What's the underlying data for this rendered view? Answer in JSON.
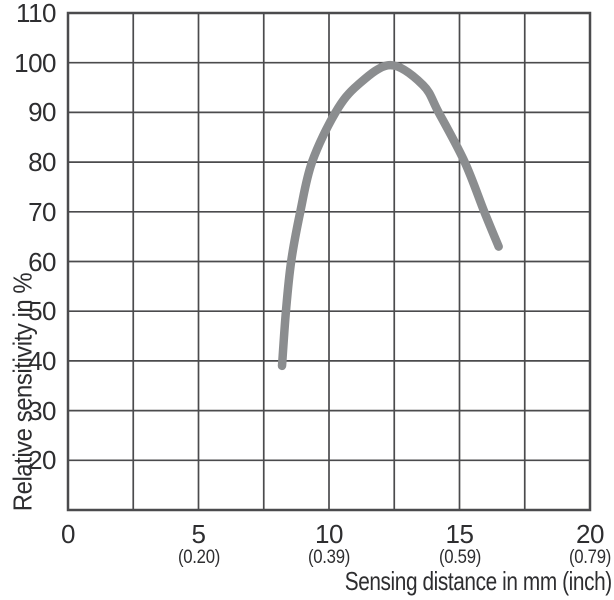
{
  "colors": {
    "background": "#ffffff",
    "grid": "#4b4b4d",
    "text": "#2e2e30",
    "curve": "#8b8d8f"
  },
  "chart_data": {
    "type": "line",
    "xlabel": "Sensing distance in mm (inch)",
    "ylabel": "Relative sensitivity in %",
    "xlim": [
      0,
      20
    ],
    "ylim": [
      10,
      110
    ],
    "x_grid_step": 2.5,
    "y_grid_step": 10,
    "grid": true,
    "legend": false,
    "x_ticks": [
      {
        "mm": 0,
        "label": "0",
        "inch": ""
      },
      {
        "mm": 5,
        "label": "5",
        "inch": "(0.20)"
      },
      {
        "mm": 10,
        "label": "10",
        "inch": "(0.39)"
      },
      {
        "mm": 15,
        "label": "15",
        "inch": "(0.59)"
      },
      {
        "mm": 20,
        "label": "20",
        "inch": "(0.79)"
      }
    ],
    "y_ticks": [
      {
        "value": 110,
        "label": "110"
      },
      {
        "value": 100,
        "label": "100"
      },
      {
        "value": 90,
        "label": "90"
      },
      {
        "value": 80,
        "label": "80"
      },
      {
        "value": 70,
        "label": "70"
      },
      {
        "value": 60,
        "label": "60"
      },
      {
        "value": 50,
        "label": "50"
      },
      {
        "value": 40,
        "label": "40"
      },
      {
        "value": 30,
        "label": "30"
      },
      {
        "value": 20,
        "label": "20"
      }
    ],
    "series": [
      {
        "name": "relative-sensitivity",
        "color": "#8b8d8f",
        "stroke_width": 8.5,
        "points": [
          [
            8.2,
            39
          ],
          [
            8.35,
            50
          ],
          [
            8.55,
            60
          ],
          [
            8.9,
            70
          ],
          [
            9.35,
            80
          ],
          [
            10.25,
            90
          ],
          [
            11.1,
            95.5
          ],
          [
            12.35,
            99.5
          ],
          [
            13.6,
            95.5
          ],
          [
            14.2,
            90
          ],
          [
            15.2,
            80
          ],
          [
            15.95,
            70
          ],
          [
            16.5,
            63
          ]
        ]
      }
    ]
  }
}
